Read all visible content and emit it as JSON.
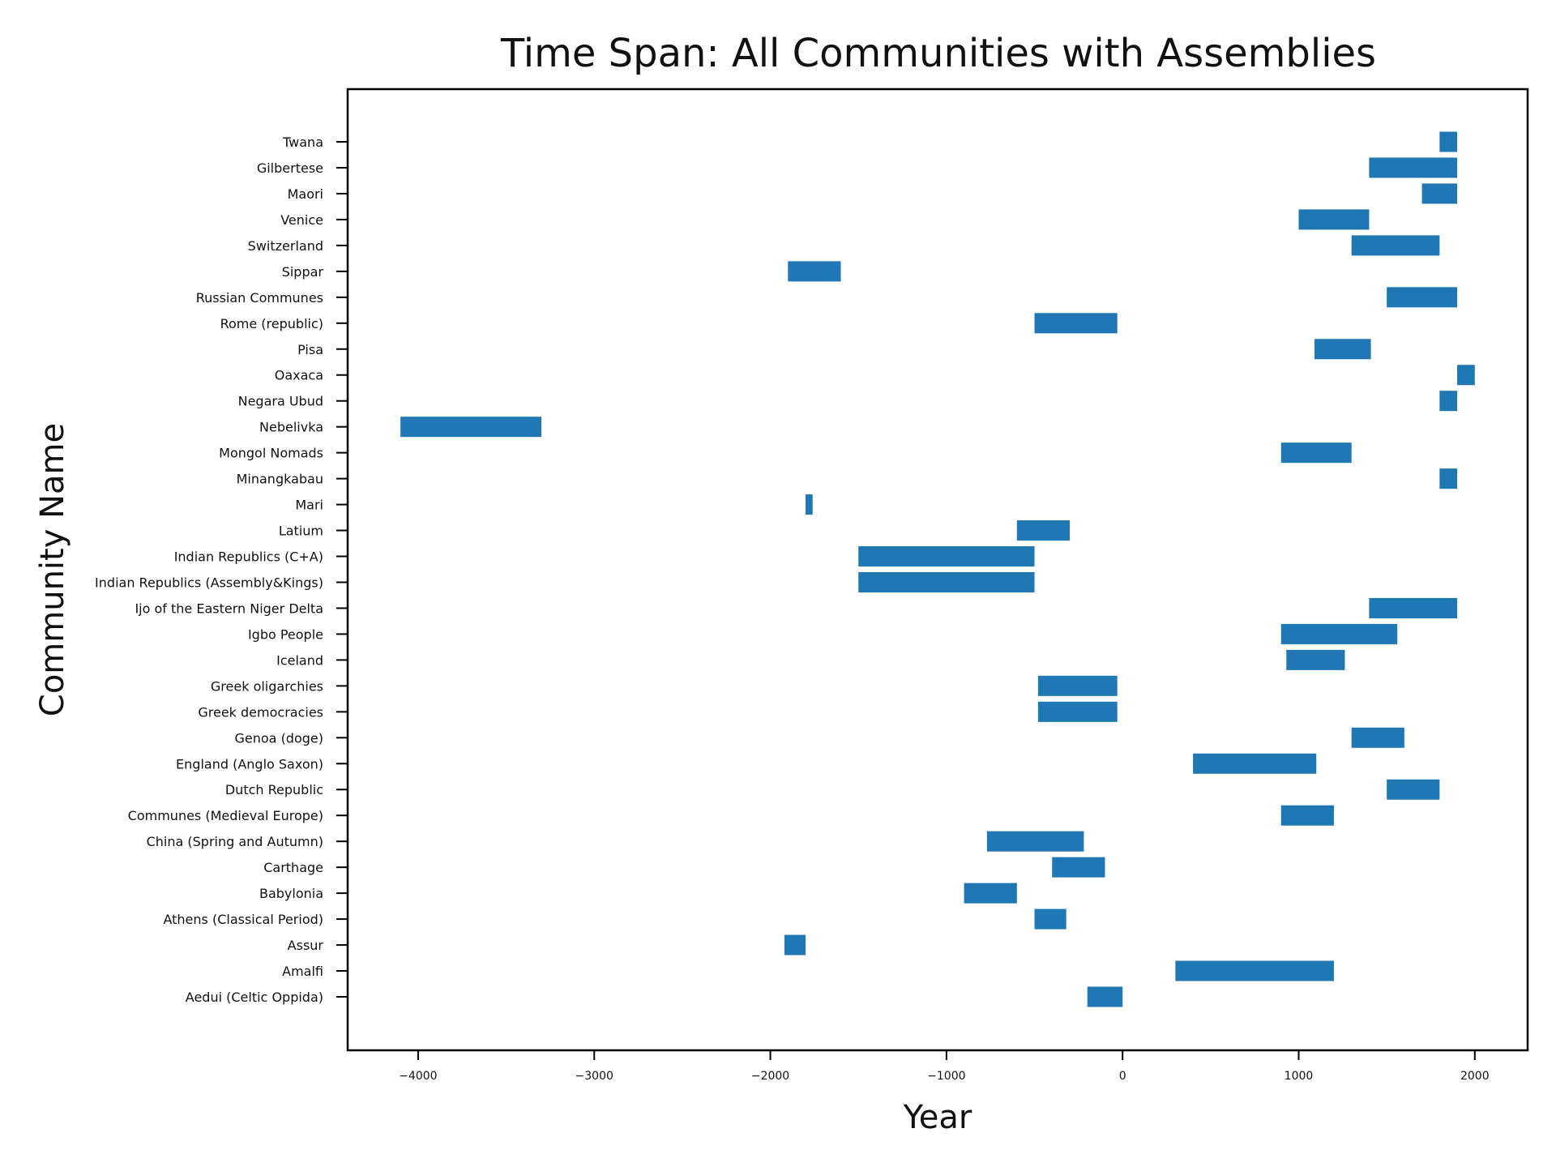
{
  "chart_data": {
    "type": "bar",
    "orientation": "horizontal",
    "title": "Time Span: All Communities with Assemblies",
    "xlabel": "Year",
    "ylabel": "Community Name",
    "xlim": [
      -4400,
      2300
    ],
    "xticks": [
      -4000,
      -3000,
      -2000,
      -1000,
      0,
      1000,
      2000
    ],
    "xtick_labels": [
      "−4000",
      "−3000",
      "−2000",
      "−1000",
      "0",
      "1000",
      "2000"
    ],
    "grid": false,
    "bar_color": "#1f77b4",
    "categories": [
      "Aedui (Celtic Oppida)",
      "Amalfi",
      "Assur",
      "Athens (Classical Period)",
      "Babylonia",
      "Carthage",
      "China (Spring and Autumn)",
      "Communes (Medieval Europe)",
      "Dutch Republic",
      "England (Anglo Saxon)",
      "Genoa (doge)",
      "Greek democracies",
      "Greek oligarchies",
      "Iceland ",
      "Igbo People",
      "Ijo of the Eastern Niger Delta",
      "Indian Republics (Assembly&Kings)",
      "Indian Republics (C+A)",
      "Latium",
      "Mari ",
      "Minangkabau",
      "Mongol Nomads",
      "Nebelivka",
      "Negara Ubud",
      "Oaxaca",
      "Pisa",
      "Rome (republic)",
      "Russian Communes",
      "Sippar",
      "Switzerland",
      "Venice",
      "Maori",
      "Gilbertese",
      "Twana"
    ],
    "start": [
      -200,
      300,
      -1920,
      -500,
      -900,
      -400,
      -770,
      900,
      1500,
      400,
      1300,
      -480,
      -480,
      930,
      900,
      1400,
      -1500,
      -1500,
      -600,
      -1800,
      1800,
      900,
      -4100,
      1800,
      1900,
      1090,
      -500,
      1500,
      -1900,
      1300,
      1000,
      1700,
      1400,
      1800
    ],
    "end": [
      0,
      1200,
      -1800,
      -320,
      -600,
      -100,
      -220,
      1200,
      1800,
      1100,
      1600,
      -30,
      -30,
      1262,
      1560,
      1900,
      -500,
      -500,
      -300,
      -1760,
      1900,
      1300,
      -3300,
      1900,
      2000,
      1410,
      -30,
      1900,
      -1600,
      1800,
      1400,
      1900,
      1900,
      1900
    ]
  }
}
